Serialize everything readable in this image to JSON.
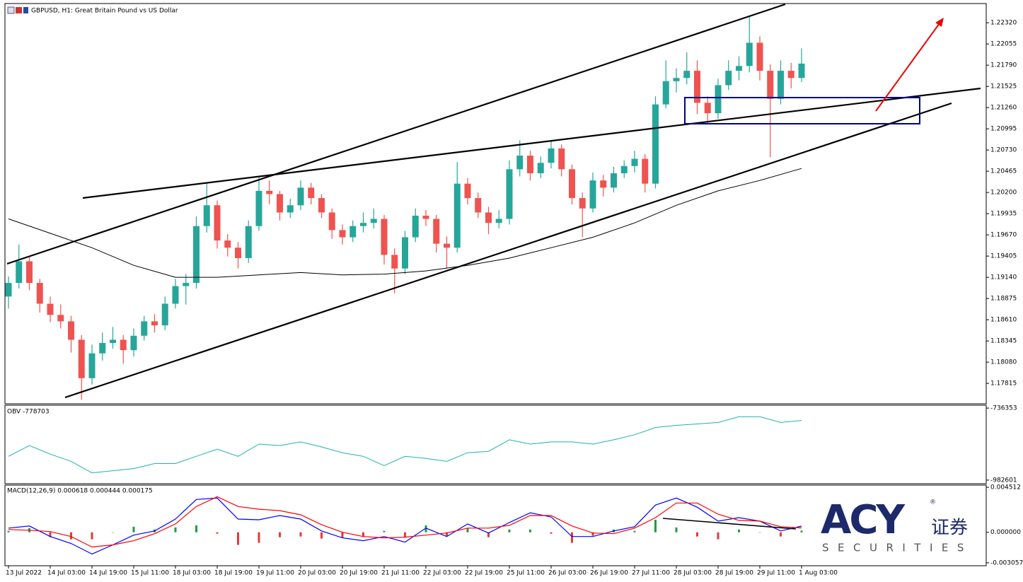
{
  "chart_data": [
    {
      "type": "candlestick",
      "title": "GBPUSD, H1:  Great Britain Pound vs US Dollar",
      "xlabels": [
        "13 Jul 2022",
        "14 Jul 03:00",
        "14 Jul 19:00",
        "15 Jul 11:00",
        "18 Jul 03:00",
        "18 Jul 19:00",
        "19 Jul 11:00",
        "20 Jul 03:00",
        "20 Jul 19:00",
        "21 Jul 11:00",
        "22 Jul 03:00",
        "22 Jul 19:00",
        "25 Jul 11:00",
        "26 Jul 03:00",
        "26 Jul 19:00",
        "27 Jul 11:00",
        "28 Jul 03:00",
        "28 Jul 19:00",
        "29 Jul 11:00",
        "1 Aug 03:00"
      ],
      "open": [
        1.189,
        1.1907,
        1.1934,
        1.1907,
        1.1881,
        1.1867,
        1.1859,
        1.1836,
        1.1788,
        1.1819,
        1.1832,
        1.1836,
        1.1823,
        1.1841,
        1.1859,
        1.1854,
        1.1881,
        1.1903,
        1.1907,
        1.1978,
        1.2004,
        1.196,
        1.1951,
        1.1938,
        1.1978,
        1.2022,
        1.2018,
        1.1995,
        1.2004,
        1.2026,
        1.2013,
        1.1995,
        1.1973,
        1.1964,
        1.1978,
        1.1982,
        1.1987,
        1.1942,
        1.1925,
        1.1964,
        1.1991,
        1.1987,
        1.1956,
        1.1951,
        1.2031,
        1.2013,
        1.1995,
        1.1982,
        1.1987,
        1.2049,
        1.2066,
        1.2044,
        1.2057,
        1.2075,
        1.2049,
        1.2013,
        1.2,
        1.2035,
        1.2026,
        1.2044,
        1.2053,
        1.2062,
        1.2031,
        1.213,
        1.2159,
        1.2163,
        1.2172,
        1.2132,
        1.2119,
        1.2154,
        1.2172,
        1.2178,
        1.2207,
        1.2172,
        1.2137,
        1.2172,
        1.2163
      ],
      "high": [
        1.1915,
        1.1955,
        1.194,
        1.1912,
        1.189,
        1.188,
        1.1866,
        1.1842,
        1.183,
        1.1845,
        1.1852,
        1.1842,
        1.185,
        1.1866,
        1.1868,
        1.189,
        1.1912,
        1.1918,
        1.199,
        1.2033,
        1.201,
        1.1968,
        1.1958,
        1.1985,
        1.204,
        1.2035,
        1.2022,
        1.2012,
        1.2035,
        1.2032,
        1.2018,
        1.2,
        1.198,
        1.1985,
        1.1995,
        1.2,
        1.1992,
        1.195,
        1.1972,
        1.2,
        1.1998,
        1.1992,
        1.1965,
        1.2058,
        1.2038,
        1.202,
        1.2002,
        1.1998,
        1.206,
        1.2085,
        1.2072,
        1.2065,
        1.2085,
        1.208,
        1.2055,
        1.202,
        1.2045,
        1.2042,
        1.2052,
        1.206,
        1.2072,
        1.2068,
        1.214,
        1.2185,
        1.2175,
        1.2195,
        1.2185,
        1.214,
        1.2162,
        1.2185,
        1.219,
        1.2241,
        1.2215,
        1.218,
        1.2185,
        1.2182,
        1.22
      ],
      "low": [
        1.1875,
        1.19,
        1.1898,
        1.187,
        1.1858,
        1.185,
        1.182,
        1.1761,
        1.178,
        1.181,
        1.1825,
        1.1806,
        1.1815,
        1.1835,
        1.1845,
        1.1848,
        1.1875,
        1.188,
        1.19,
        1.197,
        1.195,
        1.194,
        1.1925,
        1.1932,
        1.1972,
        1.2005,
        1.1985,
        1.1988,
        1.1998,
        1.2005,
        1.1988,
        1.1962,
        1.1955,
        1.1958,
        1.197,
        1.1975,
        1.193,
        1.1894,
        1.1918,
        1.1958,
        1.1978,
        1.1945,
        1.1925,
        1.1945,
        1.2005,
        1.1988,
        1.1968,
        1.1975,
        1.198,
        1.204,
        1.2035,
        1.2038,
        1.205,
        1.204,
        1.2005,
        1.1964,
        1.1995,
        1.2015,
        1.202,
        1.2038,
        1.2045,
        1.202,
        1.2025,
        1.2125,
        1.2145,
        1.2155,
        1.2118,
        1.2105,
        1.2112,
        1.2148,
        1.216,
        1.217,
        1.216,
        1.2064,
        1.213,
        1.215,
        1.2158
      ],
      "close": [
        1.1907,
        1.1934,
        1.1907,
        1.1881,
        1.1867,
        1.1859,
        1.1836,
        1.1788,
        1.1819,
        1.1832,
        1.1836,
        1.1823,
        1.1841,
        1.1859,
        1.1854,
        1.1881,
        1.1903,
        1.1907,
        1.1978,
        1.2004,
        1.196,
        1.1951,
        1.1938,
        1.1978,
        1.2022,
        1.2018,
        1.1995,
        1.2004,
        1.2026,
        1.2013,
        1.1995,
        1.1973,
        1.1964,
        1.1978,
        1.1982,
        1.1987,
        1.1942,
        1.1925,
        1.1964,
        1.1991,
        1.1987,
        1.1956,
        1.1951,
        1.2031,
        1.2013,
        1.1995,
        1.1982,
        1.1987,
        1.2049,
        1.2066,
        1.2044,
        1.2057,
        1.2075,
        1.2049,
        1.2013,
        1.2,
        1.2035,
        1.2026,
        1.2044,
        1.2053,
        1.2062,
        1.2031,
        1.213,
        1.2159,
        1.2163,
        1.2172,
        1.2132,
        1.2119,
        1.2154,
        1.2172,
        1.2178,
        1.2207,
        1.2172,
        1.2137,
        1.2172,
        1.2163,
        1.2181
      ],
      "up_color": "#26a69a",
      "down_color": "#ef5350",
      "ma": {
        "color": "#000000",
        "x": [
          0,
          4,
          8,
          12,
          16,
          20,
          24,
          28,
          32,
          36,
          40,
          44,
          48,
          52,
          56,
          60,
          64,
          68,
          72,
          76
        ],
        "values": [
          1.1987,
          1.1969,
          1.1951,
          1.1929,
          1.1914,
          1.1914,
          1.1917,
          1.192,
          1.1917,
          1.1918,
          1.1922,
          1.1929,
          1.1938,
          1.1951,
          1.1964,
          1.1982,
          1.2004,
          1.2022,
          1.2035,
          1.205
        ]
      },
      "ylim": [
        1.1756,
        1.2256
      ],
      "yticks": [
        {
          "value": 1.2232,
          "label": "1.22320"
        },
        1.22055,
        {
          "value": 1.2179,
          "label": "1.21790"
        },
        1.21525,
        {
          "value": 1.2126,
          "label": "1.21260"
        },
        1.20995,
        {
          "value": 1.2073,
          "label": "1.20730"
        },
        1.20465,
        {
          "value": 1.202,
          "label": "1.20200"
        },
        1.19935,
        {
          "value": 1.1967,
          "label": "1.19670"
        },
        1.19405,
        {
          "value": 1.1914,
          "label": "1.19140"
        },
        1.18875,
        {
          "value": 1.1861,
          "label": "1.18610"
        },
        1.18345,
        {
          "value": 1.1808,
          "label": "1.18080"
        },
        1.17815
      ]
    },
    {
      "type": "line",
      "label": "OBV -778703",
      "color": "#20b2aa",
      "x": [
        0,
        2,
        4,
        6,
        8,
        10,
        12,
        14,
        16,
        18,
        20,
        22,
        24,
        26,
        28,
        30,
        32,
        34,
        36,
        38,
        40,
        42,
        44,
        46,
        48,
        50,
        52,
        54,
        56,
        58,
        60,
        62,
        64,
        66,
        68,
        70,
        72,
        74,
        76
      ],
      "values": [
        -901300,
        -864400,
        -893950,
        -918600,
        -958000,
        -950600,
        -943200,
        -926000,
        -926000,
        -901300,
        -876700,
        -901300,
        -859500,
        -864400,
        -852100,
        -869300,
        -889000,
        -901300,
        -933400,
        -901300,
        -908700,
        -918600,
        -889000,
        -884100,
        -844700,
        -859500,
        -852100,
        -852100,
        -859500,
        -844700,
        -827500,
        -802800,
        -795500,
        -790500,
        -785600,
        -765900,
        -765900,
        -785600,
        -778703
      ],
      "ylim": [
        -995000,
        -726500
      ],
      "yticks": [
        -736353,
        -982601
      ]
    },
    {
      "type": "macd",
      "label": "MACD(12,26,9) 0.000618 0.000444 0.000175",
      "x": [
        0,
        2,
        4,
        6,
        8,
        10,
        12,
        14,
        16,
        18,
        20,
        22,
        24,
        26,
        28,
        30,
        32,
        34,
        36,
        38,
        40,
        42,
        44,
        46,
        48,
        50,
        52,
        54,
        56,
        58,
        60,
        62,
        64,
        66,
        68,
        70,
        72,
        74,
        76
      ],
      "series": [
        {
          "color": "#0000ff",
          "values": [
            0.00042,
            0.00063,
            -0.00042,
            -0.00112,
            -0.00217,
            -0.00126,
            -0.00028,
            0.00014,
            0.00133,
            0.00329,
            0.00343,
            0.00133,
            0.00126,
            0.00168,
            0.00133,
            0.00014,
            -0.00056,
            -0.00084,
            -0.00042,
            -0.00098,
            0.00042,
            -0.00042,
            0.00084,
            -7e-05,
            0.00098,
            0.00196,
            0.00154,
            -0.00042,
            -0.00042,
            0.00014,
            0.00056,
            0.00273,
            0.00343,
            0.00252,
            0.00112,
            0.00147,
            0.00112,
            0.00014,
            0.000618
          ]
        },
        {
          "color": "#ff0000",
          "values": [
            0.00028,
            0.00021,
            7e-05,
            -0.00042,
            -0.00147,
            -0.00126,
            -0.00084,
            -0.00014,
            0.00084,
            0.00259,
            0.00357,
            0.00259,
            0.00231,
            0.00217,
            0.00175,
            0.00077,
            0,
            -0.00042,
            -0.00056,
            -0.00049,
            -0.00028,
            -7e-05,
            0.00042,
            0.00042,
            0.0007,
            0.00168,
            0.00168,
            0.00063,
            -7e-05,
            -0.00014,
            0.00042,
            0.00147,
            0.00294,
            0.00294,
            0.00182,
            0.00119,
            0.00112,
            0.00056,
            0.000444
          ]
        }
      ],
      "histogram": {
        "up_color": "#1f9e3c",
        "down_color": "#e53935",
        "values": [
          0.00014,
          0.00042,
          -0.00049,
          -0.0007,
          -0.0007,
          0,
          0.00056,
          0.00028,
          0.00049,
          0.0007,
          -0.00014,
          -0.00126,
          -0.00105,
          -0.00049,
          -0.00042,
          -0.00063,
          -0.00056,
          -0.00042,
          0.00014,
          -0.00049,
          0.0007,
          -0.00035,
          0.00042,
          -0.00049,
          0.00028,
          0.00028,
          -0.00014,
          -0.00105,
          -0.00035,
          0.00028,
          0.00014,
          0.00126,
          0.00049,
          -0.00042,
          -0.0007,
          0.00028,
          0,
          -0.00042,
          0.000175
        ]
      },
      "ylim": [
        -0.00335,
        0.00473
      ],
      "yticks": [
        0.004512,
        {
          "value": 0,
          "label": "0.000000"
        },
        -0.003057
      ]
    }
  ],
  "logo": {
    "brand": "ACY",
    "chinese": "证券",
    "tagline": "SECURITIES",
    "mark": "®"
  }
}
